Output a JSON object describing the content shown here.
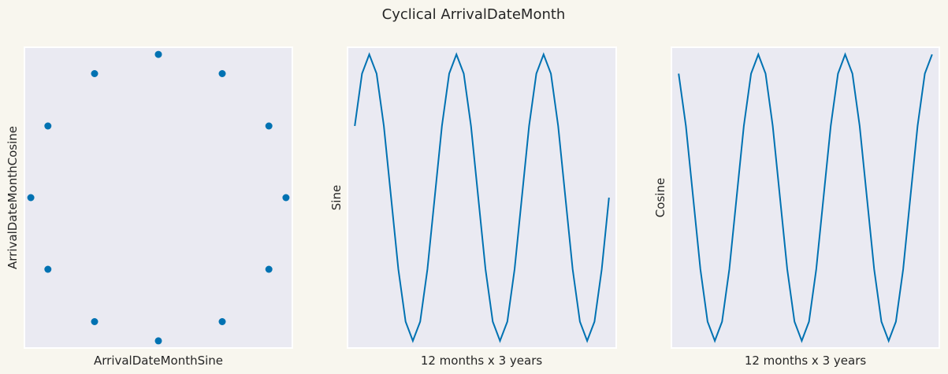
{
  "figure": {
    "title": "Cyclical ArrivalDateMonth",
    "line_color": "#0072b2",
    "panel_color": "#eaeaf2",
    "background_color": "#f8f6ee"
  },
  "chart_data": [
    {
      "type": "scatter",
      "xlabel": "ArrivalDateMonthSine",
      "ylabel": "ArrivalDateMonthCosine",
      "grid": false,
      "xticks": "none",
      "yticks": "none",
      "xlim": [
        -1.05,
        1.05
      ],
      "ylim": [
        -1.05,
        1.05
      ],
      "x": [
        0.5,
        0.866,
        1.0,
        0.866,
        0.5,
        0.0,
        -0.5,
        -0.866,
        -1.0,
        -0.866,
        -0.5,
        0.0
      ],
      "y": [
        0.866,
        0.5,
        0.0,
        -0.5,
        -0.866,
        -1.0,
        -0.866,
        -0.5,
        0.0,
        0.5,
        0.866,
        1.0
      ]
    },
    {
      "type": "line",
      "xlabel": "12 months x 3 years",
      "ylabel": "Sine",
      "grid": false,
      "xticks": "none",
      "yticks": "none",
      "xlim": [
        -1,
        36
      ],
      "ylim": [
        -1.05,
        1.05
      ],
      "x": [
        0,
        1,
        2,
        3,
        4,
        5,
        6,
        7,
        8,
        9,
        10,
        11,
        12,
        13,
        14,
        15,
        16,
        17,
        18,
        19,
        20,
        21,
        22,
        23,
        24,
        25,
        26,
        27,
        28,
        29,
        30,
        31,
        32,
        33,
        34,
        35
      ],
      "values": [
        0.5,
        0.866,
        1.0,
        0.866,
        0.5,
        0.0,
        -0.5,
        -0.866,
        -1.0,
        -0.866,
        -0.5,
        0.0,
        0.5,
        0.866,
        1.0,
        0.866,
        0.5,
        0.0,
        -0.5,
        -0.866,
        -1.0,
        -0.866,
        -0.5,
        0.0,
        0.5,
        0.866,
        1.0,
        0.866,
        0.5,
        0.0,
        -0.5,
        -0.866,
        -1.0,
        -0.866,
        -0.5,
        0.0
      ]
    },
    {
      "type": "line",
      "xlabel": "12 months x 3 years",
      "ylabel": "Cosine",
      "grid": false,
      "xticks": "none",
      "yticks": "none",
      "xlim": [
        -1,
        36
      ],
      "ylim": [
        -1.05,
        1.05
      ],
      "x": [
        0,
        1,
        2,
        3,
        4,
        5,
        6,
        7,
        8,
        9,
        10,
        11,
        12,
        13,
        14,
        15,
        16,
        17,
        18,
        19,
        20,
        21,
        22,
        23,
        24,
        25,
        26,
        27,
        28,
        29,
        30,
        31,
        32,
        33,
        34,
        35
      ],
      "values": [
        0.866,
        0.5,
        0.0,
        -0.5,
        -0.866,
        -1.0,
        -0.866,
        -0.5,
        0.0,
        0.5,
        0.866,
        1.0,
        0.866,
        0.5,
        0.0,
        -0.5,
        -0.866,
        -1.0,
        -0.866,
        -0.5,
        0.0,
        0.5,
        0.866,
        1.0,
        0.866,
        0.5,
        0.0,
        -0.5,
        -0.866,
        -1.0,
        -0.866,
        -0.5,
        0.0,
        0.5,
        0.866,
        1.0
      ]
    }
  ]
}
